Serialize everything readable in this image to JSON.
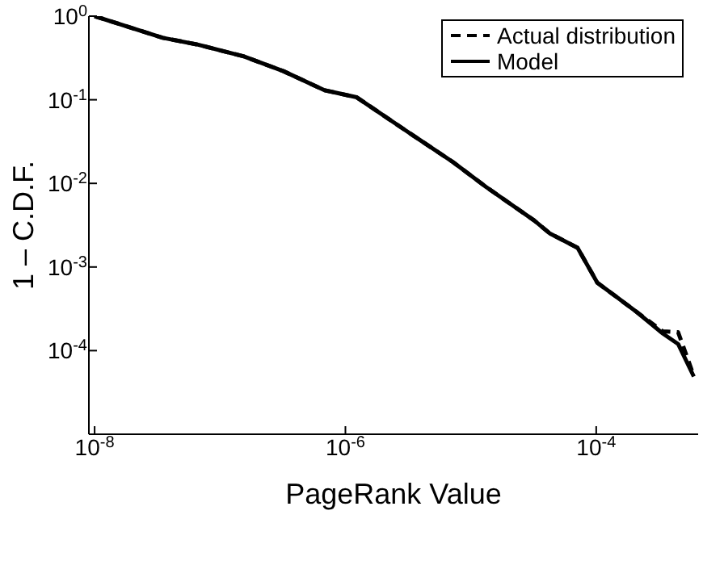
{
  "chart_data": {
    "type": "line",
    "xlabel": "PageRank Value",
    "ylabel": "1 – C.D.F.",
    "log": "xy",
    "xlim": [
      9e-09,
      0.00065
    ],
    "ylim": [
      1e-05,
      1
    ],
    "xticks": [
      {
        "value": 1e-08,
        "label": "10$^{-8}$"
      },
      {
        "value": 1e-06,
        "label": "10$^{-6}$"
      },
      {
        "value": 0.0001,
        "label": "10$^{-4}$"
      }
    ],
    "yticks": [
      {
        "value": 0.0001,
        "label": "10$^{-4}$"
      },
      {
        "value": 0.001,
        "label": "10$^{-3}$"
      },
      {
        "value": 0.01,
        "label": "10$^{-2}$"
      },
      {
        "value": 0.1,
        "label": "10$^{-1}$"
      },
      {
        "value": 1,
        "label": "10$^{0}$"
      }
    ],
    "legend": "top right",
    "series": [
      {
        "name": "Actual distribution",
        "color": "#000000",
        "line_style": "dashed",
        "x": [
          1e-08,
          3.5e-08,
          6.5e-08,
          1.55e-07,
          3.2e-07,
          6.8e-07,
          1.23e-06,
          2.95e-06,
          7.2e-06,
          1.32e-05,
          3.2e-05,
          4.3e-05,
          7.1e-05,
          0.000102,
          0.00021,
          0.00034,
          0.00045,
          0.0006
        ],
        "values": [
          1,
          0.55,
          0.46,
          0.33,
          0.22,
          0.13,
          0.107,
          0.044,
          0.018,
          0.0091,
          0.0036,
          0.0025,
          0.0017,
          0.00065,
          0.00029,
          0.00017,
          0.000166,
          5e-05
        ]
      },
      {
        "name": "Model",
        "color": "#000000",
        "line_style": "solid",
        "x": [
          1e-08,
          3.5e-08,
          6.5e-08,
          1.55e-07,
          3.2e-07,
          6.8e-07,
          1.23e-06,
          2.95e-06,
          7.2e-06,
          1.32e-05,
          3.2e-05,
          4.3e-05,
          7.1e-05,
          0.000102,
          0.00021,
          0.00034,
          0.00045,
          0.0006
        ],
        "values": [
          1,
          0.55,
          0.46,
          0.33,
          0.22,
          0.13,
          0.107,
          0.044,
          0.018,
          0.0091,
          0.0036,
          0.0025,
          0.0017,
          0.00065,
          0.00029,
          0.00016,
          0.00012,
          4.9e-05
        ]
      }
    ]
  }
}
